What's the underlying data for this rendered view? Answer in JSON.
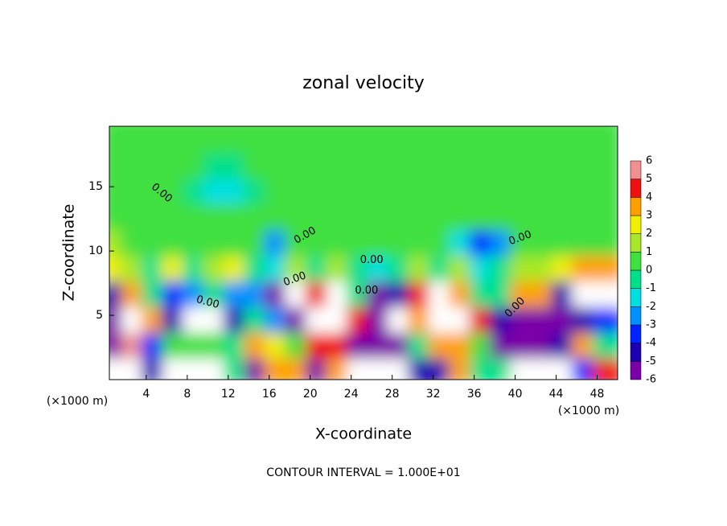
{
  "chart_data": {
    "type": "contour",
    "title": "zonal velocity",
    "x_label": "X-coordinate",
    "y_label": "Z-coordinate",
    "x_unit": "(×1000 m)",
    "footer": "CONTOUR INTERVAL = 1.000E+01",
    "xlim": [
      0.4,
      50
    ],
    "ylim": [
      0,
      19.7
    ],
    "xticks": [
      4,
      8,
      12,
      16,
      20,
      24,
      28,
      32,
      36,
      40,
      44,
      48
    ],
    "yticks": [
      5,
      10,
      15
    ],
    "x": [
      1,
      3,
      5,
      7,
      9,
      11,
      13,
      15,
      17,
      19,
      21,
      23,
      25,
      27,
      29,
      31,
      33,
      35,
      37,
      39,
      41,
      43,
      45,
      47,
      49
    ],
    "y": [
      1,
      3,
      5,
      7,
      9,
      11,
      13,
      15,
      17,
      19
    ],
    "z": [
      [
        7,
        7,
        -4,
        7,
        8,
        7,
        0,
        -5,
        4,
        4,
        -5,
        4,
        7,
        7,
        7,
        -4,
        -4,
        4,
        0,
        0,
        7,
        7,
        7,
        -3,
        5
      ],
      [
        -5,
        6,
        -3,
        1,
        1,
        1,
        0,
        4,
        3,
        1,
        5,
        5,
        -5,
        -5,
        -5,
        0,
        4,
        4,
        1,
        -5,
        -5,
        -6,
        -4,
        4,
        0
      ],
      [
        -5,
        8,
        4,
        -4,
        8,
        8,
        -4,
        0,
        -2,
        -5,
        8,
        8,
        5,
        -5,
        8,
        4,
        8,
        8,
        5,
        -4,
        -5,
        -6,
        -5,
        -4,
        -3
      ],
      [
        -4,
        4,
        0,
        -3,
        -2,
        0,
        -2,
        -2,
        -5,
        8,
        5,
        7,
        0,
        -5,
        -4,
        5,
        7,
        4,
        0,
        0,
        4,
        4,
        -4,
        7,
        7
      ],
      [
        3,
        2,
        0,
        3,
        0,
        2,
        3,
        0,
        -1,
        2,
        0,
        2,
        0,
        -1,
        0,
        2,
        0,
        2,
        -1,
        0,
        2,
        2,
        3,
        4,
        4
      ],
      [
        2,
        1,
        0.5,
        0.5,
        1,
        0.5,
        0.5,
        1,
        -2,
        0.5,
        0.5,
        1,
        0.5,
        0.5,
        1,
        0.5,
        0.5,
        -1,
        -3,
        -2,
        0.5,
        0.5,
        1,
        0.5,
        1
      ],
      [
        0.5,
        0.5,
        0.5,
        0.5,
        0.5,
        0.5,
        0.5,
        0.5,
        1,
        1,
        0.5,
        0.5,
        0.5,
        0.5,
        0.5,
        0.5,
        0.5,
        0.5,
        0.5,
        0.5,
        0.5,
        0.5,
        1,
        0.5,
        0.5
      ],
      [
        0.5,
        0.5,
        0.5,
        0.5,
        0,
        -1,
        -1.5,
        0,
        0.5,
        1,
        0.5,
        0.5,
        0.5,
        0.5,
        0.5,
        0.5,
        0.5,
        0.5,
        0.5,
        0.5,
        0.5,
        0.5,
        1,
        1,
        0.5
      ],
      [
        0.5,
        0.5,
        0.5,
        0.5,
        0.5,
        0,
        -0.5,
        0.5,
        0.5,
        0.5,
        0.5,
        0.5,
        0.5,
        0.5,
        0.5,
        0.5,
        1,
        0.5,
        0.5,
        0.5,
        0.5,
        1,
        1,
        0.5,
        0.5
      ],
      [
        0.3,
        0.3,
        0.5,
        0.5,
        0.5,
        0.5,
        0.3,
        0.5,
        0.5,
        0.5,
        0.5,
        0.5,
        0.5,
        0.5,
        0.5,
        0.5,
        0.5,
        0.5,
        0.5,
        0.5,
        0.5,
        0.5,
        0.5,
        0.5,
        0.3
      ]
    ],
    "colorbar": {
      "ticks": [
        -6,
        -5,
        -4,
        -3,
        -2,
        -1,
        0,
        1,
        2,
        3,
        4,
        5,
        6
      ],
      "colors": [
        "#7a00a8",
        "#1a00b0",
        "#0024ff",
        "#0090ff",
        "#00e0e0",
        "#00e08a",
        "#40e040",
        "#a8e828",
        "#f0f000",
        "#ffa000",
        "#f01010",
        "#f09090"
      ],
      "out_of_range_color": "#ffffff"
    },
    "contour_labels": [
      "0.00",
      "0.00",
      "0.00",
      "0.00",
      "0.00",
      "0.00",
      "0.00",
      "0.00"
    ]
  }
}
